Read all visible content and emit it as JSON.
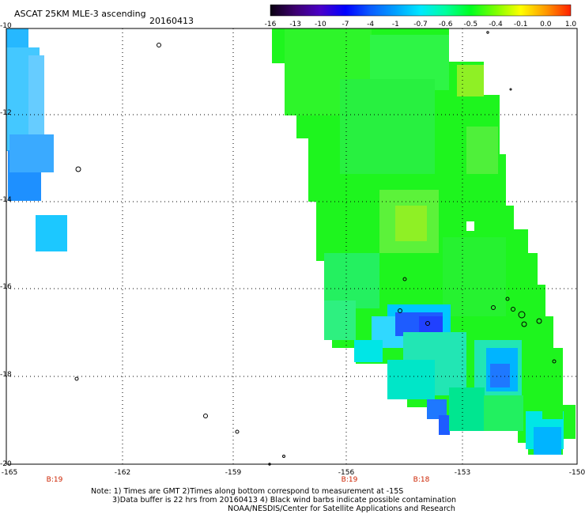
{
  "header": {
    "title": "ASCAT 25KM MLE-3 ascending",
    "date": "20160413"
  },
  "colorbar": {
    "labels": [
      "-16",
      "-13",
      "-10",
      "-7",
      "-4",
      "-1",
      "-0.7",
      "-0.6",
      "-0.5",
      "-0.4",
      "-0.1",
      "0.0",
      "1.0"
    ],
    "colors": [
      "#0a0010",
      "#3d0070",
      "#4a00c8",
      "#0000ff",
      "#0a5cff",
      "#00a0ff",
      "#00e8ff",
      "#00ff9e",
      "#00ff20",
      "#7cff00",
      "#ffff00",
      "#ff9a00",
      "#ff2000"
    ]
  },
  "axes": {
    "lon_ticks": [
      "-165",
      "-162",
      "-159",
      "-156",
      "-153",
      "-150"
    ],
    "lat_ticks": [
      "-10",
      "-12",
      "-14",
      "-16",
      "-18",
      "-20"
    ],
    "time_labels": [
      "B:19",
      "B:19",
      "B:18"
    ]
  },
  "colors": {
    "green": "#1ef51e",
    "light_green": "#5cf23a",
    "yellow_green": "#8ff025",
    "teal_green": "#22f08a",
    "cyan": "#00e6e6",
    "sky": "#00c8ff",
    "blue": "#1e90ff",
    "deep_blue": "#1e5cff",
    "time_label": "#cc2200"
  },
  "notes": [
    "Note: 1) Times are GMT 2)Times along bottom correspond to measurement at -15S",
    "3)Data buffer is 22 hrs from 20160413 4) Black wind barbs indicate possible contamination",
    "NOAA/NESDIS/Center for Satellite Applications and Research"
  ]
}
